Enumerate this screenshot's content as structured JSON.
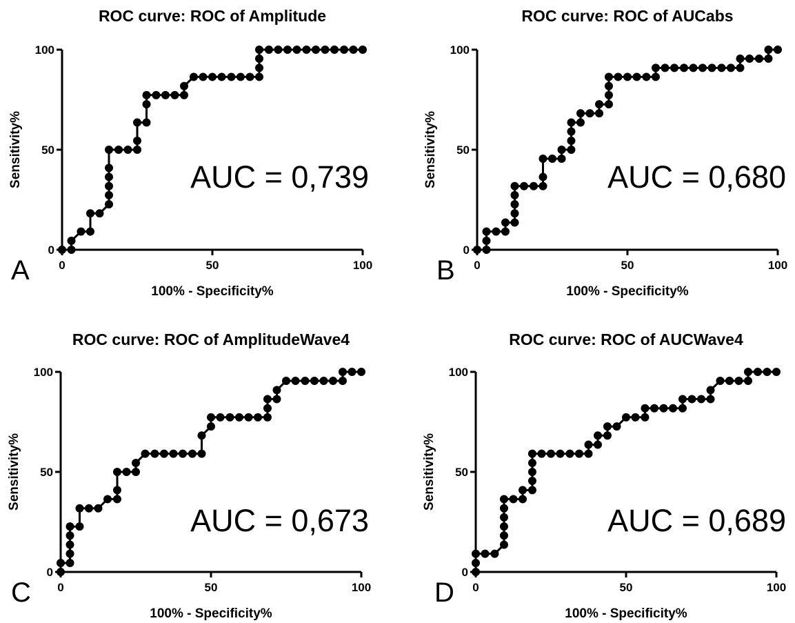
{
  "chart_data": [
    {
      "type": "line",
      "panel": "A",
      "title": "ROC curve: ROC of Amplitude",
      "xlabel": "100% - Specificity%",
      "ylabel": "Sensitivity%",
      "xlim": [
        0,
        100
      ],
      "ylim": [
        0,
        100
      ],
      "xticks": [
        "0",
        "50",
        "100"
      ],
      "yticks": [
        "0",
        "50",
        "100"
      ],
      "annotation": "AUC = 0,739",
      "x": [
        0,
        3.1,
        3.1,
        6.3,
        9.4,
        9.4,
        12.5,
        15.6,
        15.6,
        15.6,
        15.6,
        15.6,
        15.6,
        18.8,
        21.9,
        25,
        25,
        25,
        28.1,
        28.1,
        28.1,
        31.3,
        34.4,
        37.5,
        40.6,
        40.6,
        43.8,
        46.9,
        50,
        53.1,
        56.3,
        59.4,
        62.5,
        65.6,
        65.6,
        65.6,
        65.6,
        68.8,
        71.9,
        75,
        78.1,
        81.3,
        84.4,
        87.5,
        90.6,
        93.8,
        96.9,
        100
      ],
      "y": [
        0,
        0,
        4.5,
        9.1,
        9.1,
        18.2,
        18.2,
        22.7,
        27.3,
        31.8,
        36.4,
        40.9,
        50,
        50,
        50,
        50,
        54.5,
        63.6,
        63.6,
        72.7,
        77.3,
        77.3,
        77.3,
        77.3,
        77.3,
        81.8,
        86.4,
        86.4,
        86.4,
        86.4,
        86.4,
        86.4,
        86.4,
        86.4,
        90.9,
        95.5,
        100,
        100,
        100,
        100,
        100,
        100,
        100,
        100,
        100,
        100,
        100,
        100
      ]
    },
    {
      "type": "line",
      "panel": "B",
      "title": "ROC curve: ROC of AUCabs",
      "xlabel": "100% - Specificity%",
      "ylabel": "Sensitivity%",
      "xlim": [
        0,
        100
      ],
      "ylim": [
        0,
        100
      ],
      "xticks": [
        "0",
        "50",
        "100"
      ],
      "yticks": [
        "0",
        "50",
        "100"
      ],
      "annotation": "AUC = 0,680",
      "x": [
        0,
        3.1,
        3.1,
        3.1,
        6.3,
        9.4,
        9.4,
        12.5,
        12.5,
        12.5,
        12.5,
        12.5,
        15.6,
        18.8,
        21.9,
        21.9,
        21.9,
        25,
        28.1,
        28.1,
        31.3,
        31.3,
        31.3,
        31.3,
        34.4,
        34.4,
        37.5,
        40.6,
        40.6,
        43.8,
        43.8,
        43.8,
        43.8,
        46.9,
        50,
        53.1,
        56.3,
        59.4,
        59.4,
        62.5,
        65.6,
        68.8,
        71.9,
        75,
        78.1,
        81.3,
        84.4,
        87.5,
        87.5,
        90.6,
        93.8,
        96.9,
        96.9,
        100
      ],
      "y": [
        0,
        0,
        4.5,
        9.1,
        9.1,
        9.1,
        13.6,
        13.6,
        18.2,
        22.7,
        27.3,
        31.8,
        31.8,
        31.8,
        31.8,
        36.4,
        45.5,
        45.5,
        45.5,
        50,
        50,
        54.5,
        59.1,
        63.6,
        63.6,
        68.2,
        68.2,
        68.2,
        72.7,
        72.7,
        77.3,
        81.8,
        86.4,
        86.4,
        86.4,
        86.4,
        86.4,
        86.4,
        90.9,
        90.9,
        90.9,
        90.9,
        90.9,
        90.9,
        90.9,
        90.9,
        90.9,
        90.9,
        95.5,
        95.5,
        95.5,
        95.5,
        100,
        100
      ]
    },
    {
      "type": "line",
      "panel": "C",
      "title": "ROC curve: ROC of AmplitudeWave4",
      "xlabel": "100% - Specificity%",
      "ylabel": "Sensitivity%",
      "xlim": [
        0,
        100
      ],
      "ylim": [
        0,
        100
      ],
      "xticks": [
        "0",
        "50",
        "100"
      ],
      "yticks": [
        "0",
        "50",
        "100"
      ],
      "annotation": "AUC = 0,673",
      "x": [
        0,
        0,
        3.1,
        3.1,
        3.1,
        3.1,
        3.1,
        6.3,
        6.3,
        9.4,
        12.5,
        15.6,
        18.8,
        18.8,
        18.8,
        21.9,
        25,
        25,
        28.1,
        31.3,
        34.4,
        37.5,
        40.6,
        43.8,
        46.9,
        46.9,
        50,
        50,
        53.1,
        56.3,
        59.4,
        62.5,
        65.6,
        68.8,
        68.8,
        68.8,
        71.9,
        71.9,
        75,
        78.1,
        81.3,
        84.4,
        87.5,
        90.6,
        93.8,
        93.8,
        96.9,
        100
      ],
      "y": [
        0,
        4.5,
        4.5,
        9.1,
        13.6,
        18.2,
        22.7,
        22.7,
        31.8,
        31.8,
        31.8,
        36.4,
        36.4,
        40.9,
        50,
        50,
        50,
        54.5,
        59.1,
        59.1,
        59.1,
        59.1,
        59.1,
        59.1,
        59.1,
        68.2,
        72.7,
        77.3,
        77.3,
        77.3,
        77.3,
        77.3,
        77.3,
        77.3,
        81.8,
        86.4,
        86.4,
        90.9,
        95.5,
        95.5,
        95.5,
        95.5,
        95.5,
        95.5,
        95.5,
        100,
        100,
        100
      ]
    },
    {
      "type": "line",
      "panel": "D",
      "title": "ROC curve: ROC of AUCWave4",
      "xlabel": "100% - Specificity%",
      "ylabel": "Sensitivity%",
      "xlim": [
        0,
        100
      ],
      "ylim": [
        0,
        100
      ],
      "xticks": [
        "0",
        "50",
        "100"
      ],
      "yticks": [
        "0",
        "50",
        "100"
      ],
      "annotation": "AUC = 0,689",
      "x": [
        0,
        0,
        0,
        3.1,
        6.3,
        9.4,
        9.4,
        9.4,
        9.4,
        9.4,
        9.4,
        12.5,
        15.6,
        15.6,
        18.8,
        18.8,
        18.8,
        18.8,
        18.8,
        21.9,
        25,
        28.1,
        31.3,
        34.4,
        37.5,
        37.5,
        40.6,
        40.6,
        43.8,
        43.8,
        46.9,
        50,
        53.1,
        56.3,
        56.3,
        59.4,
        62.5,
        65.6,
        68.8,
        68.8,
        71.9,
        75,
        78.1,
        78.1,
        81.3,
        84.4,
        87.5,
        90.6,
        90.6,
        93.8,
        96.9,
        100
      ],
      "y": [
        0,
        4.5,
        9.1,
        9.1,
        9.1,
        13.6,
        18.2,
        22.7,
        27.3,
        31.8,
        36.4,
        36.4,
        36.4,
        40.9,
        40.9,
        45.5,
        50,
        54.5,
        59.1,
        59.1,
        59.1,
        59.1,
        59.1,
        59.1,
        59.1,
        63.6,
        63.6,
        68.2,
        68.2,
        72.7,
        72.7,
        77.3,
        77.3,
        77.3,
        81.8,
        81.8,
        81.8,
        81.8,
        81.8,
        86.4,
        86.4,
        86.4,
        86.4,
        90.9,
        95.5,
        95.5,
        95.5,
        95.5,
        100,
        100,
        100,
        100
      ]
    }
  ]
}
